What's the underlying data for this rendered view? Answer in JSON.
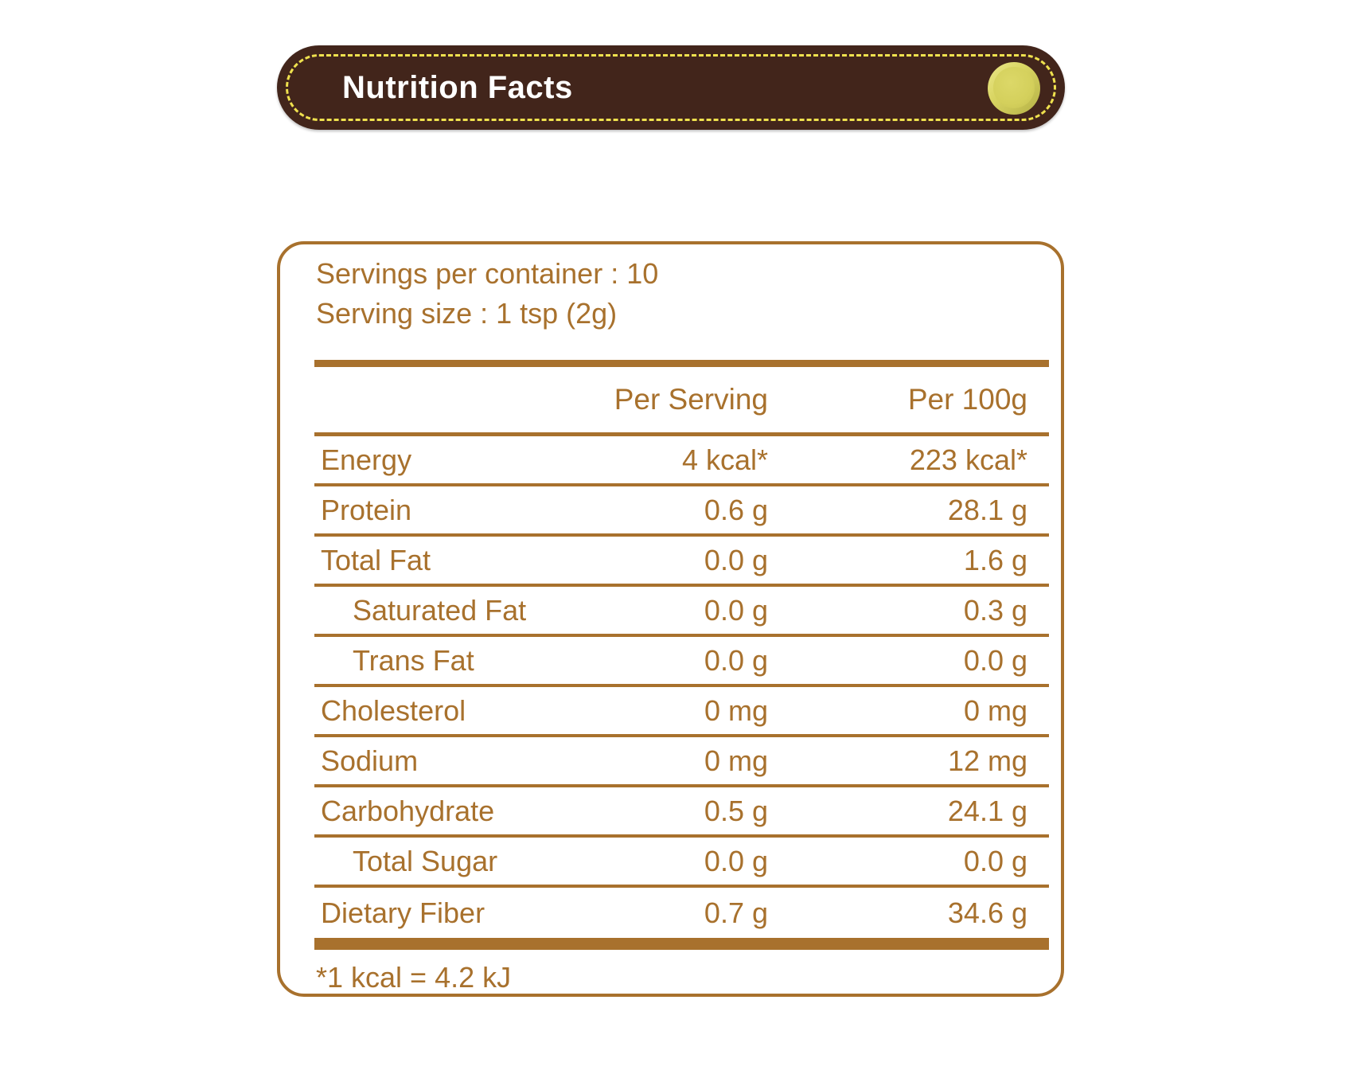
{
  "header": {
    "title": "Nutrition Facts"
  },
  "label": {
    "servings_per_container": "Servings per container : 10",
    "serving_size": "Serving size : 1 tsp (2g)",
    "columns": {
      "per_serving": "Per Serving",
      "per_100g": "Per 100g"
    },
    "rows": [
      {
        "name": "Energy",
        "per_serving": "4 kcal*",
        "per_100g": "223 kcal*"
      },
      {
        "name": "Protein",
        "per_serving": "0.6 g",
        "per_100g": "28.1 g"
      },
      {
        "name": "Total Fat",
        "per_serving": "0.0 g",
        "per_100g": "1.6 g"
      },
      {
        "name": "Saturated Fat",
        "per_serving": "0.0 g",
        "per_100g": "0.3 g"
      },
      {
        "name": "Trans Fat",
        "per_serving": "0.0 g",
        "per_100g": "0.0 g"
      },
      {
        "name": "Cholesterol",
        "per_serving": "0 mg",
        "per_100g": "0 mg"
      },
      {
        "name": "Sodium",
        "per_serving": "0 mg",
        "per_100g": "12 mg"
      },
      {
        "name": "Carbohydrate",
        "per_serving": "0.5 g",
        "per_100g": "24.1 g"
      },
      {
        "name": "Total Sugar",
        "per_serving": "0.0 g",
        "per_100g": "0.0 g"
      },
      {
        "name": "Dietary Fiber",
        "per_serving": "0.7 g",
        "per_100g": "34.6 g"
      }
    ],
    "footnote": "*1 kcal = 4.2 kJ"
  },
  "colors": {
    "pill_background": "#42251B",
    "stitch_yellow": "#EFE14E",
    "dot_yellow": "#D4D05C",
    "accent_brown": "#A8712D",
    "title_text": "#FFFFFF",
    "page_background": "#FFFFFF"
  }
}
